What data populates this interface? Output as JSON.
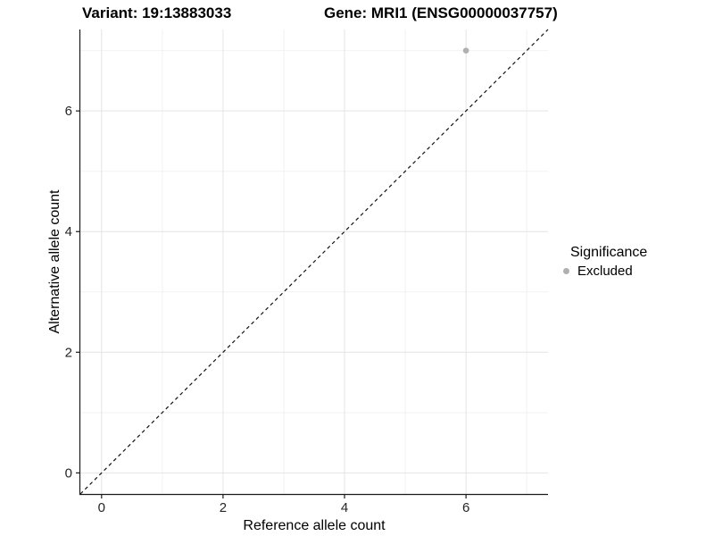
{
  "titles": {
    "left": "Variant: 19:13883033",
    "right": "Gene: MRI1 (ENSG00000037757)"
  },
  "chart_data": {
    "type": "scatter",
    "title": "Variant: 19:13883033   Gene: MRI1 (ENSG00000037757)",
    "xlabel": "Reference allele count",
    "ylabel": "Alternative allele count",
    "xlim": [
      -0.35,
      7.35
    ],
    "ylim": [
      -0.35,
      7.35
    ],
    "x_ticks": [
      0,
      2,
      4,
      6
    ],
    "y_ticks": [
      0,
      2,
      4,
      6
    ],
    "x_minor_gridlines": [
      1,
      3,
      5,
      7
    ],
    "y_minor_gridlines": [
      1,
      3,
      5,
      7
    ],
    "grid": "on",
    "legend": {
      "title": "Significance",
      "position": "right",
      "entries": [
        {
          "label": "Excluded",
          "color": "#b0b0b0"
        }
      ]
    },
    "series": [
      {
        "name": "Excluded",
        "color": "#b0b0b0",
        "points": [
          [
            6,
            7
          ]
        ]
      }
    ],
    "annotations": [
      {
        "type": "identity-line",
        "style": "dashed",
        "color": "#111111",
        "from": [
          -0.35,
          -0.35
        ],
        "to": [
          7.35,
          7.35
        ]
      }
    ],
    "colors": {
      "grid_major": "#e4e4e4",
      "grid_minor": "#f2f2f2",
      "axis_line": "#1a1a1a",
      "tick_label": "#262626",
      "point": "#b0b0b0"
    }
  }
}
